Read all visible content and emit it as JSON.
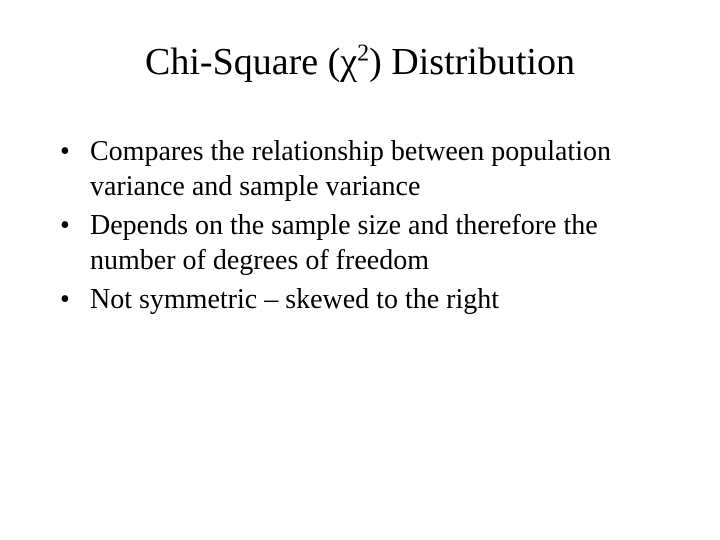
{
  "slide": {
    "title_prefix": "Chi-Square (",
    "title_chi": "χ",
    "title_super": "2",
    "title_suffix": ") Distribution",
    "bullets": [
      "Compares the relationship between population variance and sample variance",
      "Depends on the sample size and therefore the number of degrees of freedom",
      "Not symmetric – skewed to the right"
    ],
    "colors": {
      "background": "#ffffff",
      "text": "#000000"
    },
    "typography": {
      "title_fontsize": 38,
      "bullet_fontsize": 28,
      "font_family": "Times New Roman"
    }
  }
}
